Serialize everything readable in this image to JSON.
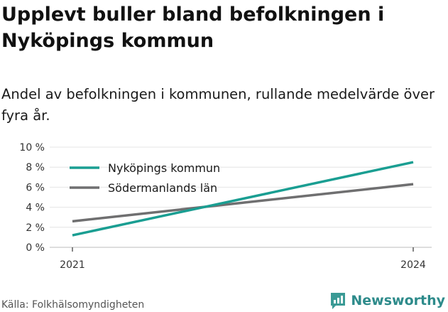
{
  "title": "Upplevt buller bland befolkningen i Nyköpings kommun",
  "subtitle": "Andel av befolkningen i kommunen, rullande medelvärde över fyra år.",
  "source": "Källa: Folkhälsomyndigheten",
  "brand": "Newsworthy",
  "colors": {
    "series1": "#1a9e92",
    "series2": "#6f6f70",
    "grid": "#e4e4e4",
    "axis": "#333333",
    "brand": "#2e8b8b"
  },
  "chart_data": {
    "type": "line",
    "x": [
      2021,
      2024
    ],
    "x_tick_labels": [
      "2021",
      "2024"
    ],
    "series": [
      {
        "name": "Nyköpings kommun",
        "values": [
          1.2,
          8.5
        ]
      },
      {
        "name": "Södermanlands län",
        "values": [
          2.6,
          6.3
        ]
      }
    ],
    "ylim": [
      0,
      10
    ],
    "y_ticks": [
      0,
      2,
      4,
      6,
      8,
      10
    ],
    "y_tick_labels": [
      "0 %",
      "2 %",
      "4 %",
      "6 %",
      "8 %",
      "10 %"
    ],
    "grid": true,
    "legend_position": "top-left"
  }
}
